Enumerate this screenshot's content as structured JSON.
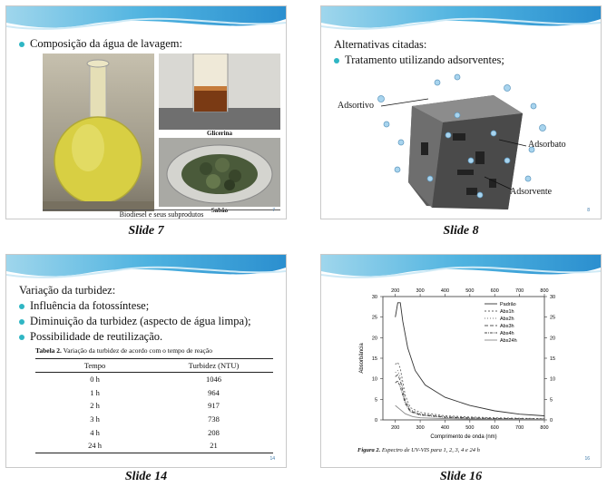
{
  "slides": [
    {
      "caption": "Slide 7",
      "bullet": "Composição da água de lavagem:",
      "photo_labels": [
        "Glicerina",
        "Sabão"
      ],
      "footer": "Biodiesel e seus subprodutos",
      "page_number": "7"
    },
    {
      "caption": "Slide 8",
      "heading": "Alternativas citadas:",
      "bullet": "Tratamento utilizando adsorventes;",
      "labels": [
        "Adsortivo",
        "Adsorbato",
        "Adsorvente"
      ],
      "page_number": "8"
    },
    {
      "caption": "Slide 14",
      "heading": "Variação da turbidez:",
      "bullets": [
        "Influência da fotossíntese;",
        "Diminuição da turbidez (aspecto de água limpa);",
        "Possibilidade de reutilização."
      ],
      "table_caption_bold": "Tabela 2.",
      "table_caption_rest": " Variação da turbidez de acordo com o tempo de reação",
      "table_headers": [
        "Tempo",
        "Turbidez (NTU)"
      ],
      "table_rows": [
        [
          "0 h",
          "1046"
        ],
        [
          "1 h",
          "964"
        ],
        [
          "2 h",
          "917"
        ],
        [
          "3 h",
          "738"
        ],
        [
          "4 h",
          "208"
        ],
        [
          "24 h",
          "21"
        ]
      ],
      "page_number": "14"
    },
    {
      "caption": "Slide 16",
      "figure_caption_bold": "Figura 2.",
      "figure_caption_rest": " Espectro de UV-VIS para 1, 2, 3, 4 e 24 h",
      "page_number": "16"
    }
  ],
  "chart_data": {
    "type": "line",
    "title": "",
    "xlabel": "Comprimento de onda (nm)",
    "ylabel": "Absorbância",
    "xlim": [
      150,
      800
    ],
    "ylim": [
      0,
      30
    ],
    "x_ticks": [
      200,
      300,
      400,
      500,
      600,
      700,
      800
    ],
    "y_ticks": [
      0,
      5,
      10,
      15,
      20,
      25,
      30
    ],
    "grid": false,
    "legend_position": "top-right",
    "series": [
      {
        "name": "Padrão",
        "color": "#333333",
        "dash": "",
        "x": [
          200,
          210,
          220,
          230,
          250,
          280,
          320,
          400,
          500,
          600,
          700,
          800
        ],
        "y": [
          25,
          28.5,
          28.5,
          24,
          17.5,
          12,
          8.5,
          5.5,
          3.5,
          2.2,
          1.4,
          1.0
        ]
      },
      {
        "name": "Abs1h",
        "color": "#666666",
        "dash": "2,2",
        "x": [
          200,
          210,
          220,
          240,
          260,
          300,
          400,
          500,
          600,
          700,
          800
        ],
        "y": [
          13.5,
          14,
          12.5,
          6,
          3,
          1.8,
          1.0,
          0.7,
          0.5,
          0.4,
          0.3
        ]
      },
      {
        "name": "Abs2h",
        "color": "#777777",
        "dash": "1,2",
        "x": [
          200,
          210,
          220,
          240,
          260,
          300,
          400,
          500,
          600,
          700,
          800
        ],
        "y": [
          11.5,
          12,
          10.5,
          5,
          2.5,
          1.5,
          0.8,
          0.5,
          0.4,
          0.3,
          0.2
        ]
      },
      {
        "name": "Abs3h",
        "color": "#555555",
        "dash": "4,2",
        "x": [
          200,
          210,
          220,
          240,
          260,
          300,
          400,
          500,
          600,
          700,
          800
        ],
        "y": [
          10.5,
          11,
          9.5,
          4.5,
          2.2,
          1.3,
          0.7,
          0.5,
          0.35,
          0.3,
          0.2
        ]
      },
      {
        "name": "Abs4h",
        "color": "#444444",
        "dash": "3,1,1,1",
        "x": [
          200,
          210,
          220,
          240,
          260,
          300,
          400,
          500,
          600,
          700,
          800
        ],
        "y": [
          9,
          9.5,
          8,
          4,
          2,
          1.2,
          0.6,
          0.4,
          0.3,
          0.25,
          0.2
        ]
      },
      {
        "name": "Abs24h",
        "color": "#888888",
        "dash": "",
        "x": [
          200,
          220,
          240,
          270,
          300,
          400,
          500,
          600,
          700,
          800
        ],
        "y": [
          3.5,
          2.5,
          1.5,
          0.8,
          0.5,
          0.3,
          0.2,
          0.15,
          0.1,
          0.1
        ]
      }
    ]
  }
}
